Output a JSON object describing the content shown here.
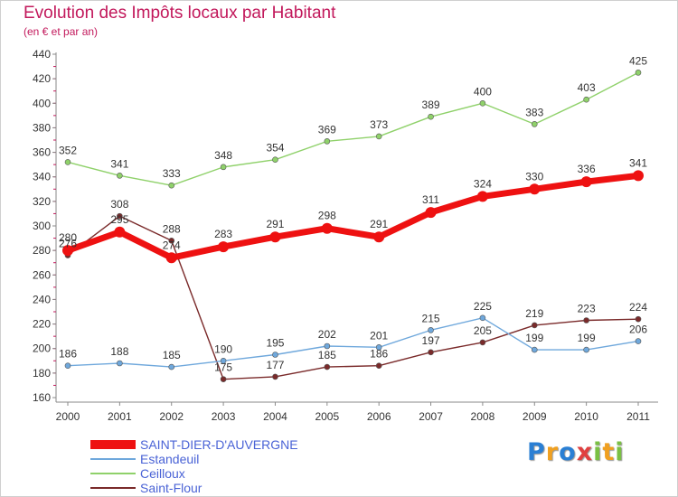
{
  "header": {
    "title": "Evolution des Impôts locaux par Habitant",
    "subtitle": "(en € et par an)"
  },
  "chart_data": {
    "type": "line",
    "title": "Evolution des Impôts locaux par Habitant",
    "subtitle": "(en € et par an)",
    "xlabel": "",
    "ylabel": "",
    "categories": [
      "2000",
      "2001",
      "2002",
      "2003",
      "2004",
      "2005",
      "2006",
      "2007",
      "2008",
      "2009",
      "2010",
      "2011"
    ],
    "ylim": [
      160,
      440
    ],
    "yticks": [
      160,
      180,
      200,
      220,
      240,
      260,
      280,
      300,
      320,
      340,
      360,
      380,
      400,
      420,
      440
    ],
    "grid": false,
    "legend_position": "bottom-left",
    "series": [
      {
        "name": "Saint-Flour",
        "color": "#7a2a2a",
        "values": [
          276,
          308,
          288,
          175,
          177,
          185,
          186,
          197,
          205,
          219,
          223,
          224
        ]
      },
      {
        "name": "Estandeuil",
        "color": "#6fa8dc",
        "values": [
          186,
          188,
          185,
          190,
          195,
          202,
          201,
          215,
          225,
          199,
          199,
          206
        ]
      },
      {
        "name": "Ceilloux",
        "color": "#8fd16a",
        "values": [
          352,
          341,
          333,
          348,
          354,
          369,
          373,
          389,
          400,
          383,
          403,
          425
        ]
      },
      {
        "name": "SAINT-DIER-D'AUVERGNE",
        "color": "#ee1111",
        "values": [
          280,
          295,
          274,
          283,
          291,
          298,
          291,
          311,
          324,
          330,
          336,
          341
        ]
      }
    ]
  },
  "legend": {
    "items": [
      {
        "label": "SAINT-DIER-D'AUVERGNE",
        "color": "#ee1111"
      },
      {
        "label": "Estandeuil",
        "color": "#6fa8dc"
      },
      {
        "label": "Ceilloux",
        "color": "#8fd16a"
      },
      {
        "label": "Saint-Flour",
        "color": "#7a2a2a"
      }
    ]
  },
  "logo": {
    "letters": [
      "P",
      "r",
      "o",
      "x",
      "i",
      "t",
      "i"
    ],
    "colors": [
      "#2a7fd4",
      "#f0a020",
      "#2a7fd4",
      "#e04040",
      "#7ac043",
      "#f0a020",
      "#7ac043"
    ]
  }
}
